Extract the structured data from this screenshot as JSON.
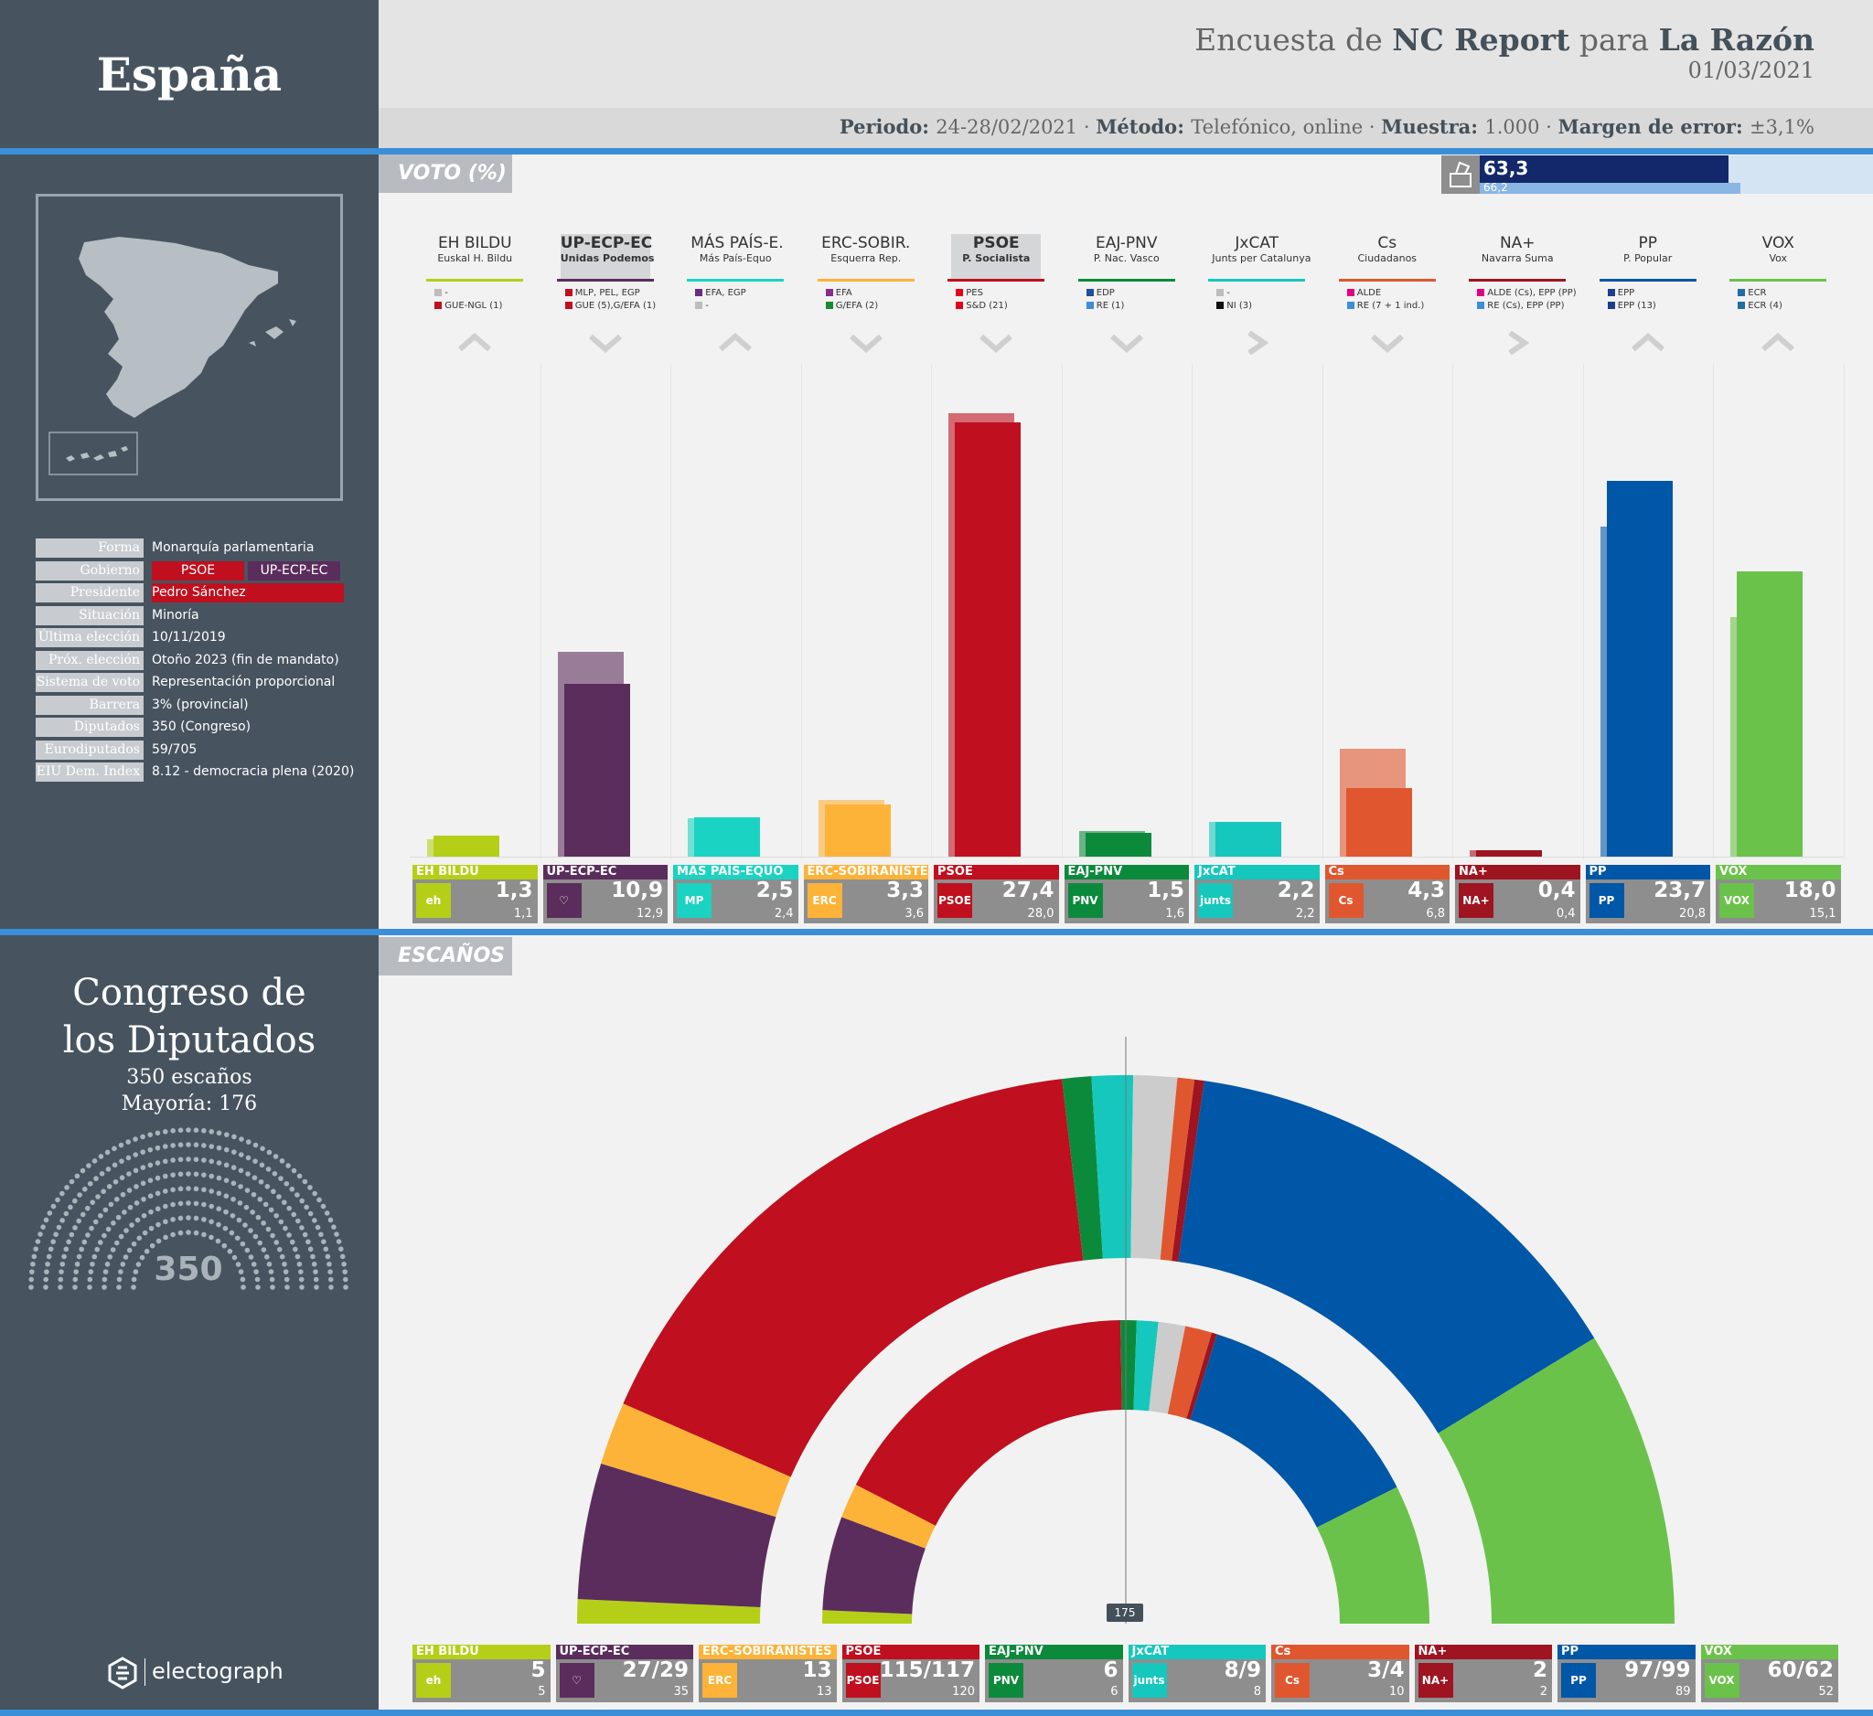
{
  "sidebar": {
    "country": "España",
    "info": [
      {
        "key": "Forma",
        "value": "Monarquía parlamentaria"
      },
      {
        "key": "Gobierno",
        "value": ""
      },
      {
        "key": "Presidente",
        "value": "Pedro Sánchez"
      },
      {
        "key": "Situación",
        "value": "Minoría"
      },
      {
        "key": "Última elección",
        "value": "10/11/2019"
      },
      {
        "key": "Próx. elección",
        "value": "Otoño 2023 (fin de mandato)"
      },
      {
        "key": "Sistema de voto",
        "value": "Representación proporcional"
      },
      {
        "key": "Barrera",
        "value": "3% (provincial)"
      },
      {
        "key": "Diputados",
        "value": "350 (Congreso)"
      },
      {
        "key": "Eurodiputados",
        "value": "59/705"
      },
      {
        "key": "EIU Dem. Index",
        "value": "8.12 - democracia plena (2020)"
      }
    ],
    "government_parties": [
      {
        "name": "PSOE",
        "color": "#c00f1e"
      },
      {
        "name": "UP-ECP-EC",
        "color": "#5b2d5c"
      }
    ],
    "president_color": "#c00f1e",
    "congress": {
      "title_line1": "Congreso de",
      "title_line2": "los Diputados",
      "seats_text": "350 escaños",
      "majority_text": "Mayoría: 176",
      "total": "350"
    },
    "brand": "electograph"
  },
  "header": {
    "title_prefix": "Encuesta de",
    "pollster": "NC Report",
    "title_mid": "para",
    "client": "La Razón",
    "date": "01/03/2021",
    "meta": [
      {
        "key": "Periodo:",
        "value": "24-28/02/2021"
      },
      {
        "key": "Método:",
        "value": "Telefónico, online"
      },
      {
        "key": "Muestra:",
        "value": "1.000"
      },
      {
        "key": "Margen de error:",
        "value": "±3,1%"
      }
    ],
    "meta_sep": "·"
  },
  "sections": {
    "vote": "VOTO (%)",
    "seats": "ESCAÑOS"
  },
  "turnout": {
    "current": "63,3",
    "previous": "66,2",
    "icon": "ballot-box-icon"
  },
  "majority_marker": "175",
  "parties": [
    {
      "id": "bildu",
      "short": "EH BILDU",
      "full": "Euskal H. Bildu",
      "card": "EH BILDU",
      "logo": "eh bildu",
      "color": "#b5cf18",
      "groups": [
        {
          "c": "#bdbdbd",
          "t": "-"
        },
        {
          "c": "#c00f1e",
          "t": "GUE-NGL (1)"
        }
      ],
      "trend": "up"
    },
    {
      "id": "up",
      "short": "UP-ECP-EC",
      "full": "Unidas Podemos",
      "card": "UP-ECP-EC",
      "logo": "♡",
      "color": "#5b2d5c",
      "groups": [
        {
          "c": "#c00f1e",
          "t": "MLP, PEL, EGP"
        },
        {
          "c": "#c00f1e",
          "t": "GUE (5),G/EFA (1)"
        }
      ],
      "trend": "down",
      "highlight": true
    },
    {
      "id": "mp",
      "short": "MÁS PAÍS-E.",
      "full": "Más País-Equo",
      "card": "MÁS PAÍS-EQUO",
      "logo": "MP",
      "color": "#1ad3c2",
      "groups": [
        {
          "c": "#6a2e84",
          "t": "EFA, EGP"
        },
        {
          "c": "#bdbdbd",
          "t": "-"
        }
      ],
      "trend": "up"
    },
    {
      "id": "erc",
      "short": "ERC-SOBIR.",
      "full": "Esquerra Rep.",
      "card": "ERC-SOBIRANISTES",
      "logo": "ERC",
      "color": "#fdb338",
      "groups": [
        {
          "c": "#8a2a8f",
          "t": "EFA"
        },
        {
          "c": "#188a30",
          "t": "G/EFA (2)"
        }
      ],
      "trend": "down"
    },
    {
      "id": "psoe",
      "short": "PSOE",
      "full": "P. Socialista",
      "card": "PSOE",
      "logo": "PSOE",
      "color": "#c00f1e",
      "groups": [
        {
          "c": "#e3001b",
          "t": "PES"
        },
        {
          "c": "#e3001b",
          "t": "S&D (21)"
        }
      ],
      "trend": "down",
      "highlight": true
    },
    {
      "id": "pnv",
      "short": "EAJ-PNV",
      "full": "P. Nac. Vasco",
      "card": "EAJ-PNV",
      "logo": "PNV",
      "color": "#0c8a3c",
      "groups": [
        {
          "c": "#1d4f9c",
          "t": "EDP"
        },
        {
          "c": "#3a8fd8",
          "t": "RE (1)"
        }
      ],
      "trend": "down"
    },
    {
      "id": "jxcat",
      "short": "JxCAT",
      "full": "Junts per Catalunya",
      "card": "JxCAT",
      "logo": "junts",
      "color": "#16c7bd",
      "groups": [
        {
          "c": "#bdbdbd",
          "t": "-"
        },
        {
          "c": "#111111",
          "t": "NI (3)"
        }
      ],
      "trend": "right"
    },
    {
      "id": "cs",
      "short": "Cs",
      "full": "Ciudadanos",
      "card": "Cs",
      "logo": "Cs",
      "color": "#e0572f",
      "groups": [
        {
          "c": "#e3007e",
          "t": "ALDE"
        },
        {
          "c": "#3a8fd8",
          "t": "RE (7 + 1 ind.)"
        }
      ],
      "trend": "down"
    },
    {
      "id": "na",
      "short": "NA+",
      "full": "Navarra Suma",
      "card": "NA+",
      "logo": "NA+",
      "color": "#9e1420",
      "groups": [
        {
          "c": "#e3007e",
          "t": "ALDE (Cs), EPP (PP)"
        },
        {
          "c": "#3a8fd8",
          "t": "RE (Cs), EPP (PP)"
        }
      ],
      "trend": "right"
    },
    {
      "id": "pp",
      "short": "PP",
      "full": "P. Popular",
      "card": "PP",
      "logo": "PP",
      "color": "#0056a7",
      "groups": [
        {
          "c": "#1d3e8c",
          "t": "EPP"
        },
        {
          "c": "#1d3e8c",
          "t": "EPP (13)"
        }
      ],
      "trend": "up"
    },
    {
      "id": "vox",
      "short": "VOX",
      "full": "Vox",
      "card": "VOX",
      "logo": "VOX",
      "color": "#6bc24a",
      "groups": [
        {
          "c": "#1d6fa3",
          "t": "ECR"
        },
        {
          "c": "#1d6fa3",
          "t": "ECR (4)"
        }
      ],
      "trend": "up"
    }
  ],
  "chart_data": [
    {
      "type": "bar",
      "title": "VOTO (%)",
      "categories": [
        "EH BILDU",
        "UP-ECP-EC",
        "MÁS PAÍS-EQUO",
        "ERC-SOBIRANISTES",
        "PSOE",
        "EAJ-PNV",
        "JxCAT",
        "Cs",
        "NA+",
        "PP",
        "VOX"
      ],
      "series": [
        {
          "name": "Encuesta",
          "values": [
            1.3,
            10.9,
            2.5,
            3.3,
            27.4,
            1.5,
            2.2,
            4.3,
            0.4,
            23.7,
            18.0
          ],
          "labels": [
            "1,3",
            "10,9",
            "2,5",
            "3,3",
            "27,4",
            "1,5",
            "2,2",
            "4,3",
            "0,4",
            "23,7",
            "18,0"
          ]
        },
        {
          "name": "Elección 10/11/2019",
          "values": [
            1.1,
            12.9,
            2.4,
            3.6,
            28.0,
            1.6,
            2.2,
            6.8,
            0.4,
            20.8,
            15.1
          ],
          "labels": [
            "1,1",
            "12,9",
            "2,4",
            "3,6",
            "28,0",
            "1,6",
            "2,2",
            "6,8",
            "0,4",
            "20,8",
            "15,1"
          ]
        }
      ],
      "ylim": [
        0,
        30
      ]
    },
    {
      "type": "pie",
      "title": "ESCAÑOS",
      "categories": [
        "EH BILDU",
        "UP-ECP-EC",
        "ERC-SOBIRANISTES",
        "PSOE",
        "EAJ-PNV",
        "JxCAT",
        "Cs",
        "NA+",
        "PP",
        "VOX"
      ],
      "series": [
        {
          "name": "Encuesta",
          "values": [
            5,
            28,
            13,
            116,
            6,
            8.5,
            3.5,
            2,
            98,
            61
          ],
          "labels": [
            "5",
            "27/29",
            "13",
            "115/117",
            "6",
            "8/9",
            "3/4",
            "2",
            "97/99",
            "60/62"
          ]
        },
        {
          "name": "Elección 10/11/2019",
          "values": [
            5,
            35,
            13,
            120,
            6,
            8,
            10,
            2,
            89,
            52
          ],
          "labels": [
            "5",
            "35",
            "13",
            "120",
            "6",
            "8",
            "10",
            "2",
            "89",
            "52"
          ]
        }
      ],
      "total": 350,
      "majority": 175
    }
  ]
}
